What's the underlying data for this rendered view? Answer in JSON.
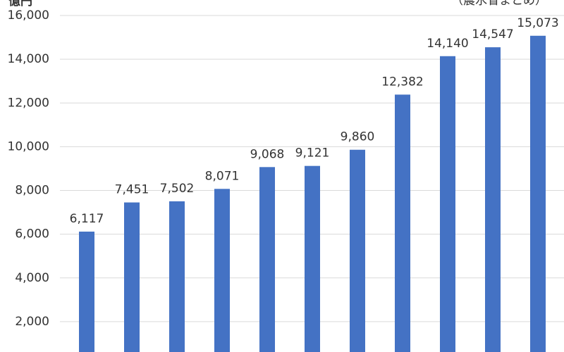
{
  "chart_data": {
    "type": "bar",
    "y_label": "億円",
    "annotation": "（農水省まとめ）",
    "categories": [
      null,
      null,
      null,
      null,
      null,
      null,
      null,
      null,
      null,
      null,
      null
    ],
    "values": [
      6117,
      7451,
      7502,
      8071,
      9068,
      9121,
      9860,
      12382,
      14140,
      14547,
      15073
    ],
    "value_labels": [
      "6,117",
      "7,451",
      "7,502",
      "8,071",
      "9,068",
      "9,121",
      "9,860",
      "12,382",
      "14,140",
      "14,547",
      "15,073"
    ],
    "color": "#4472c4",
    "ylim": [
      0,
      16000
    ],
    "yticks": [
      {
        "value": 2000,
        "label": "2,000"
      },
      {
        "value": 4000,
        "label": "4,000"
      },
      {
        "value": 6000,
        "label": "6,000"
      },
      {
        "value": 8000,
        "label": "8,000"
      },
      {
        "value": 10000,
        "label": "10,000"
      },
      {
        "value": 12000,
        "label": "12,000"
      },
      {
        "value": 14000,
        "label": "14,000"
      },
      {
        "value": 16000,
        "label": "16,000"
      }
    ],
    "grid": true
  }
}
